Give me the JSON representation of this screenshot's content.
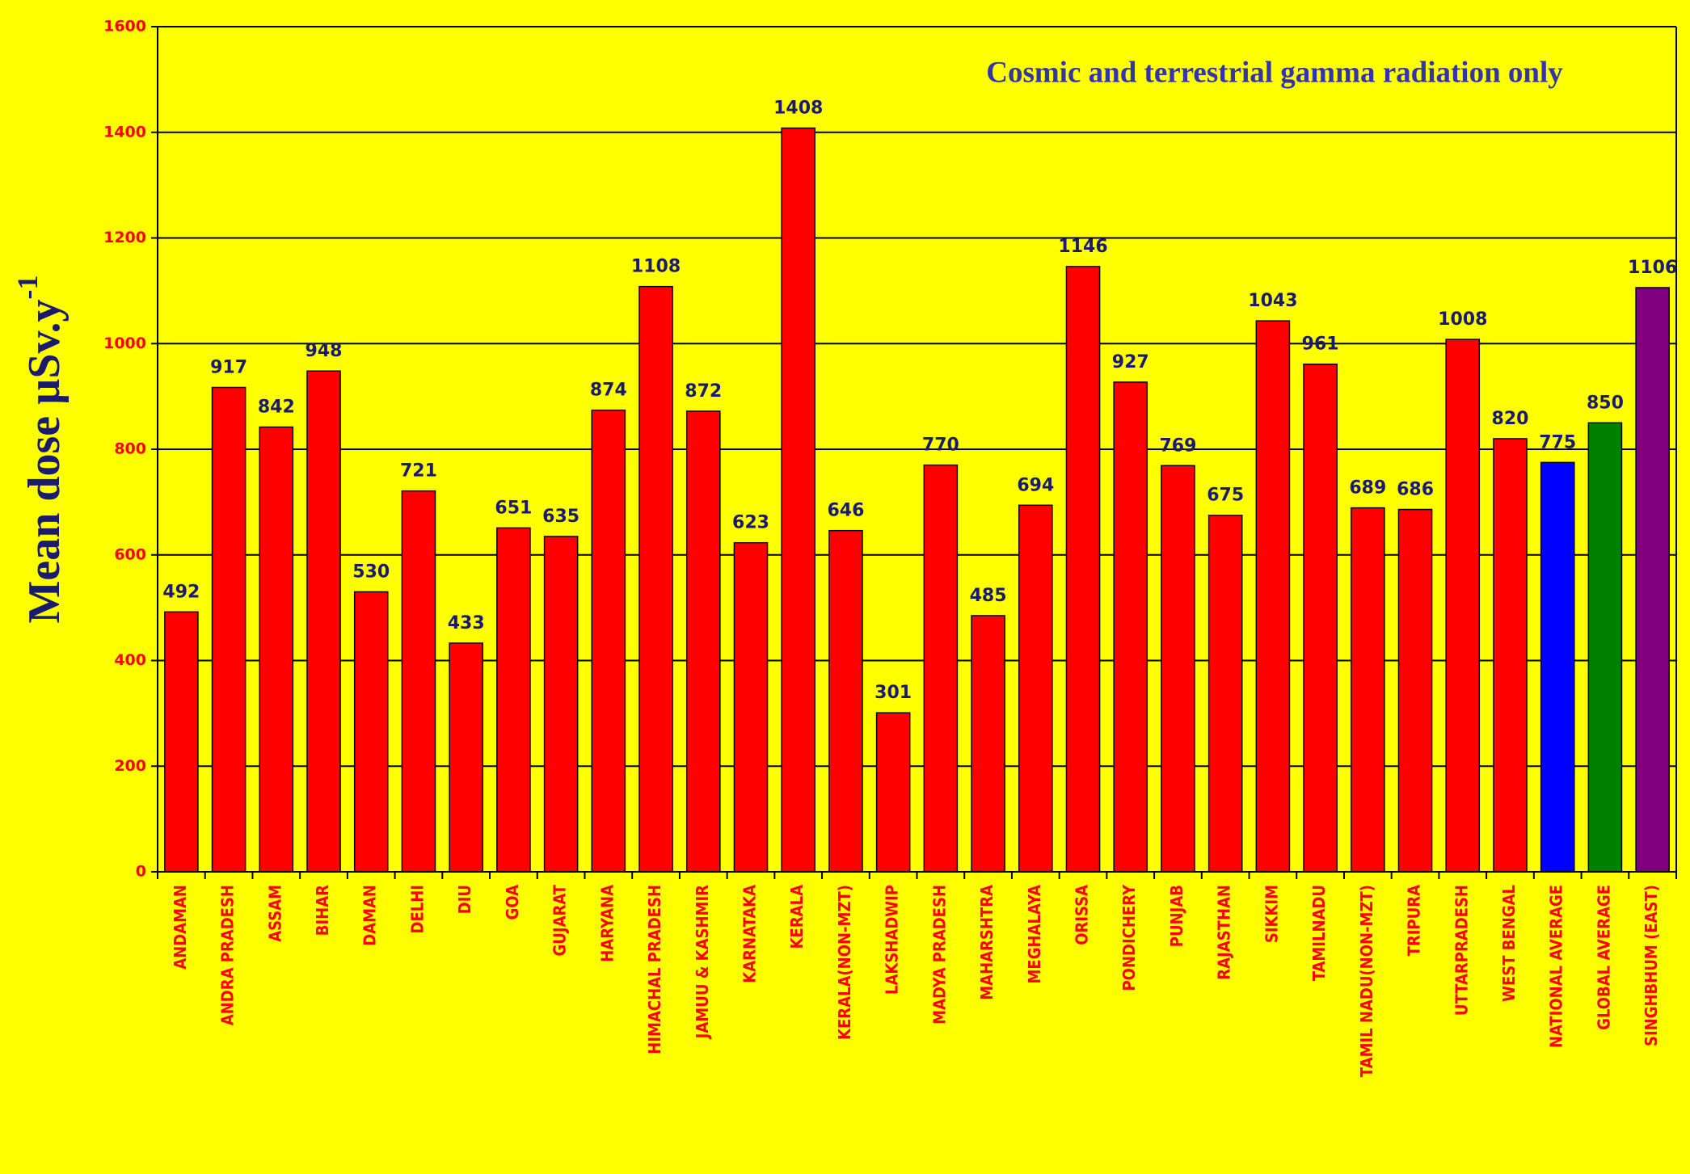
{
  "chart_data": {
    "type": "bar",
    "annotation": "Cosmic and terrestrial gamma radiation only",
    "y_label": "Mean dose µSv.y",
    "y_label_superscript": "-1",
    "categories": [
      "ANDAMAN",
      "ANDRA PRADESH",
      "ASSAM",
      "BIHAR",
      "DAMAN",
      "DELHI",
      "DIU",
      "GOA",
      "GUJARAT",
      "HARYANA",
      "HIMACHAL PRADESH",
      "JAMUU & KASHMIR",
      "KARNATAKA",
      "KERALA",
      "KERALA(NON-MZT)",
      "LAKSHADWIP",
      "MADYA PRADESH",
      "MAHARSHTRA",
      "MEGHALAYA",
      "ORISSA",
      "PONDICHERY",
      "PUNJAB",
      "RAJASTHAN",
      "SIKKIM",
      "TAMILNADU",
      "TAMIL NADU(NON-MZT)",
      "TRIPURA",
      "UTTARPRADESH",
      "WEST BENGAL",
      "NATIONAL AVERAGE",
      "GLOBAL AVERAGE",
      "SINGHBHUM (EAST)"
    ],
    "values": [
      492,
      917,
      842,
      948,
      530,
      721,
      433,
      651,
      635,
      874,
      1108,
      872,
      623,
      1408,
      646,
      301,
      770,
      485,
      694,
      1146,
      927,
      769,
      675,
      1043,
      961,
      689,
      686,
      1008,
      820,
      775,
      850,
      1106
    ],
    "colors": [
      "#ff0000",
      "#ff0000",
      "#ff0000",
      "#ff0000",
      "#ff0000",
      "#ff0000",
      "#ff0000",
      "#ff0000",
      "#ff0000",
      "#ff0000",
      "#ff0000",
      "#ff0000",
      "#ff0000",
      "#ff0000",
      "#ff0000",
      "#ff0000",
      "#ff0000",
      "#ff0000",
      "#ff0000",
      "#ff0000",
      "#ff0000",
      "#ff0000",
      "#ff0000",
      "#ff0000",
      "#ff0000",
      "#ff0000",
      "#ff0000",
      "#ff0000",
      "#ff0000",
      "#0000ff",
      "#008000",
      "#800080"
    ],
    "value_label_color": "#1a1a6e",
    "ylim": [
      0,
      1600
    ],
    "yticks": [
      0,
      200,
      400,
      600,
      800,
      1000,
      1200,
      1400,
      1600
    ],
    "grid": true
  }
}
